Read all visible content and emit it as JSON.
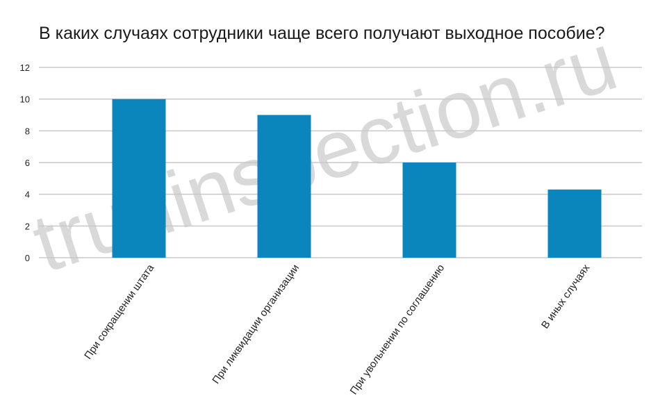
{
  "chart_data": {
    "type": "bar",
    "title": "В каких случаях сотрудники чаще всего получают выходное пособие?",
    "xlabel": "",
    "ylabel": "",
    "categories": [
      "При сокращении штата",
      "При ликвидации организации",
      "При увольнении по соглашению",
      "В иных случаях"
    ],
    "values": [
      10,
      9,
      6,
      4.3
    ],
    "ylim": [
      0,
      12
    ],
    "yticks": [
      0,
      2,
      4,
      6,
      8,
      10,
      12
    ],
    "grid": true,
    "legend": "none",
    "bar_color": "#0a86bc",
    "grid_color": "#c8c8c8"
  },
  "watermark": {
    "text": "trudinspection.ru",
    "color": "#d9d9d9"
  }
}
